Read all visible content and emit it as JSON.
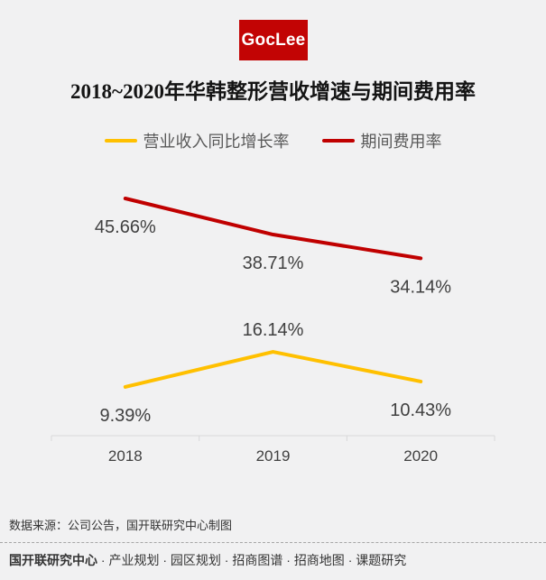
{
  "logo": {
    "text": "GocLee",
    "bg_color": "#c20404",
    "fg_color": "#ffffff"
  },
  "title": "2018~2020年华韩整形营收增速与期间费用率",
  "chart_data": {
    "type": "line",
    "categories": [
      "2018",
      "2019",
      "2020"
    ],
    "series": [
      {
        "name": "营业收入同比增长率",
        "color": "#FFC000",
        "values": [
          9.39,
          16.14,
          10.43
        ],
        "labels": [
          "9.39%",
          "16.14%",
          "10.43%"
        ]
      },
      {
        "name": "期间费用率",
        "color": "#C00000",
        "values": [
          45.66,
          38.71,
          34.14
        ],
        "labels": [
          "45.66%",
          "38.71%",
          "34.14%"
        ]
      }
    ],
    "ylim": [
      0,
      50
    ],
    "xlabel": "",
    "ylabel": "",
    "grid": false,
    "legend_position": "top",
    "axis_color": "#d9d9d9"
  },
  "source_note": "数据来源：公司公告，国开联研究中心制图",
  "footer": {
    "brand": "国开联研究中心",
    "separator": "·",
    "services": [
      "产业规划",
      "园区规划",
      "招商图谱",
      "招商地图",
      "课题研究"
    ]
  }
}
